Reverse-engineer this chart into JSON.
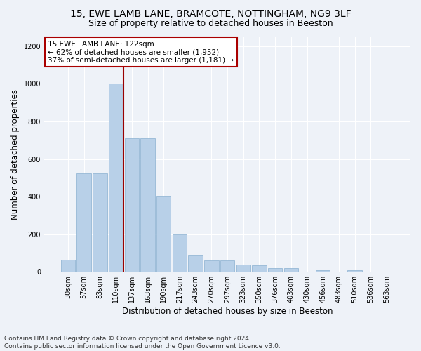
{
  "title1": "15, EWE LAMB LANE, BRAMCOTE, NOTTINGHAM, NG9 3LF",
  "title2": "Size of property relative to detached houses in Beeston",
  "xlabel": "Distribution of detached houses by size in Beeston",
  "ylabel": "Number of detached properties",
  "categories": [
    "30sqm",
    "57sqm",
    "83sqm",
    "110sqm",
    "137sqm",
    "163sqm",
    "190sqm",
    "217sqm",
    "243sqm",
    "270sqm",
    "297sqm",
    "323sqm",
    "350sqm",
    "376sqm",
    "403sqm",
    "430sqm",
    "456sqm",
    "483sqm",
    "510sqm",
    "536sqm",
    "563sqm"
  ],
  "values": [
    65,
    525,
    525,
    1000,
    710,
    710,
    405,
    198,
    90,
    60,
    60,
    37,
    33,
    20,
    20,
    0,
    10,
    0,
    10,
    0,
    0
  ],
  "bar_color": "#b8d0e8",
  "bar_edge_color": "#8ab0d0",
  "vline_color": "#990000",
  "annotation_text": "15 EWE LAMB LANE: 122sqm\n← 62% of detached houses are smaller (1,952)\n37% of semi-detached houses are larger (1,181) →",
  "annotation_box_color": "#aa0000",
  "annotation_fill": "#ffffff",
  "ylim": [
    0,
    1250
  ],
  "yticks": [
    0,
    200,
    400,
    600,
    800,
    1000,
    1200
  ],
  "footer": "Contains HM Land Registry data © Crown copyright and database right 2024.\nContains public sector information licensed under the Open Government Licence v3.0.",
  "bg_color": "#eef2f8",
  "grid_color": "#ffffff",
  "title1_fontsize": 10,
  "title2_fontsize": 9,
  "xlabel_fontsize": 8.5,
  "ylabel_fontsize": 8.5,
  "tick_fontsize": 7,
  "annotation_fontsize": 7.5,
  "footer_fontsize": 6.5
}
